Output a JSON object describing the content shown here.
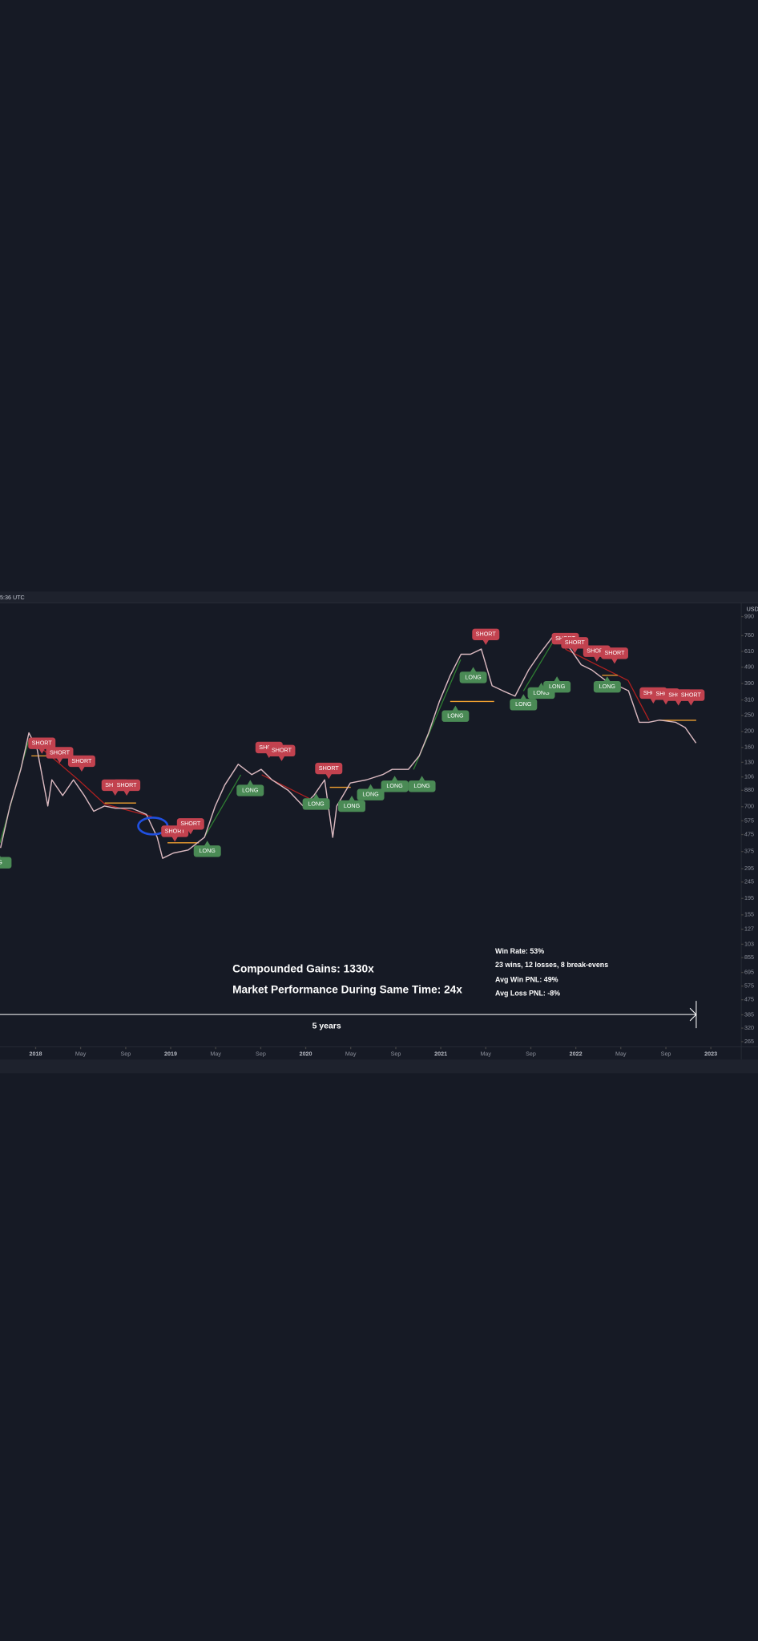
{
  "chart_data": {
    "type": "line",
    "log_scale": true,
    "color": "#d9b8bf",
    "x": [
      2017.74,
      2017.81,
      2017.89,
      2017.95,
      2018.01,
      2018.09,
      2018.12,
      2018.2,
      2018.28,
      2018.36,
      2018.43,
      2018.51,
      2018.59,
      2018.71,
      2018.82,
      2018.9,
      2018.94,
      2019.02,
      2019.13,
      2019.25,
      2019.33,
      2019.4,
      2019.5,
      2019.6,
      2019.67,
      2019.75,
      2019.87,
      2019.98,
      2020.06,
      2020.14,
      2020.2,
      2020.23,
      2020.33,
      2020.45,
      2020.57,
      2020.64,
      2020.76,
      2020.84,
      2020.91,
      2020.99,
      2021.07,
      2021.15,
      2021.22,
      2021.3,
      2021.38,
      2021.46,
      2021.55,
      2021.65,
      2021.73,
      2021.83,
      2021.88,
      2021.96,
      2022.04,
      2022.12,
      2022.22,
      2022.31,
      2022.39,
      2022.47,
      2022.54,
      2022.62,
      2022.74,
      2022.81,
      2022.89
    ],
    "values": [
      3940,
      7070,
      11780,
      19600,
      15750,
      7070,
      10180,
      8180,
      10180,
      8180,
      6570,
      7070,
      6860,
      6860,
      6290,
      4570,
      3410,
      3670,
      3830,
      4570,
      7070,
      9460,
      12650,
      10950,
      11780,
      10180,
      8790,
      7070,
      8180,
      10180,
      4570,
      7070,
      9740,
      10180,
      10950,
      11780,
      11780,
      14200,
      19600,
      30400,
      43700,
      58600,
      58600,
      63000,
      37800,
      35200,
      32700,
      47000,
      58600,
      75000,
      70800,
      63000,
      50600,
      47000,
      40700,
      37800,
      35200,
      22700,
      22700,
      23400,
      22700,
      21100,
      17000
    ],
    "xlim": [
      2017.736,
      2023.225
    ],
    "xticks": [
      2018,
      {
        "value": 2018.333,
        "label": "May"
      },
      {
        "value": 2018.667,
        "label": "Sep"
      },
      2019,
      {
        "value": 2019.333,
        "label": "May"
      },
      {
        "value": 2019.667,
        "label": "Sep"
      },
      2020,
      {
        "value": 2020.333,
        "label": "May"
      },
      {
        "value": 2020.667,
        "label": "Sep"
      },
      2021,
      {
        "value": 2021.333,
        "label": "May"
      },
      {
        "value": 2021.667,
        "label": "Sep"
      },
      2022,
      {
        "value": 2022.333,
        "label": "May"
      },
      {
        "value": 2022.667,
        "label": "Sep"
      },
      2023
    ],
    "ylim": [
      246,
      117900
    ],
    "yticks": [
      {
        "value": 99000,
        "label": "990"
      },
      {
        "value": 76000,
        "label": "760"
      },
      {
        "value": 61000,
        "label": "610"
      },
      {
        "value": 49000,
        "label": "490"
      },
      {
        "value": 39000,
        "label": "390"
      },
      {
        "value": 31000,
        "label": "310"
      },
      {
        "value": 25000,
        "label": "250"
      },
      {
        "value": 20000,
        "label": "200"
      },
      {
        "value": 16000,
        "label": "160"
      },
      {
        "value": 13000,
        "label": "130"
      },
      {
        "value": 10600,
        "label": "106"
      },
      {
        "value": 8800,
        "label": "880"
      },
      {
        "value": 7000,
        "label": "700"
      },
      {
        "value": 5750,
        "label": "575"
      },
      {
        "value": 4750,
        "label": "475"
      },
      {
        "value": 3750,
        "label": "375"
      },
      {
        "value": 2950,
        "label": "295"
      },
      {
        "value": 2450,
        "label": "245"
      },
      {
        "value": 1950,
        "label": "195"
      },
      {
        "value": 1550,
        "label": "155"
      },
      {
        "value": 1270,
        "label": "127"
      },
      {
        "value": 1030,
        "label": "103"
      },
      855,
      695,
      575,
      475,
      385,
      320,
      265
    ],
    "currency": "USD",
    "timestamp": "5:36 UTC",
    "signals": [
      "SHORT",
      "SHORT",
      "SHORT",
      "SHORT",
      "SHORT",
      "SHORT",
      "SHORT",
      "SHORT",
      "SHORT",
      "SHORT",
      "SHORT",
      "SHORT",
      "SHORT",
      "SHORT",
      "SHORT",
      "SHORT",
      "SHORT",
      "SHORT",
      "SHORT",
      "NG",
      "LONG",
      "LONG",
      "LONG",
      "LONG",
      "LONG",
      "LONG",
      "LONG",
      "LONG",
      "LONG",
      "LONG",
      "LONG",
      "LONG",
      "LONG"
    ],
    "annotations": {
      "compounded_gains": "Compounded Gains:  1330x",
      "market_performance": "Market Performance During Same Time:  24x",
      "win_rate": "Win Rate:  53%",
      "record": "23 wins, 12 losses, 8 break-evens",
      "avg_win": "Avg Win PNL:  49%",
      "avg_loss": "Avg Loss PNL:  -8%",
      "period": "5 years"
    }
  }
}
